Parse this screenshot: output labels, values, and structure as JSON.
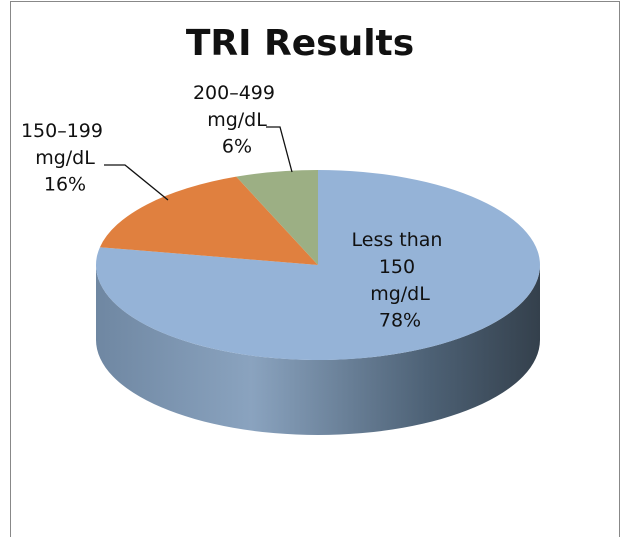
{
  "chart_data": {
    "type": "pie3d",
    "title": "TRI Results",
    "categories": [
      "Less than 150 mg/dL",
      "150–199 mg/dL",
      "200–499 mg/dL"
    ],
    "values": [
      78,
      16,
      6
    ],
    "value_labels": [
      "78%",
      "16%",
      "6%"
    ],
    "colors": [
      "#95b3d7",
      "#e0803f",
      "#9caf84"
    ]
  }
}
